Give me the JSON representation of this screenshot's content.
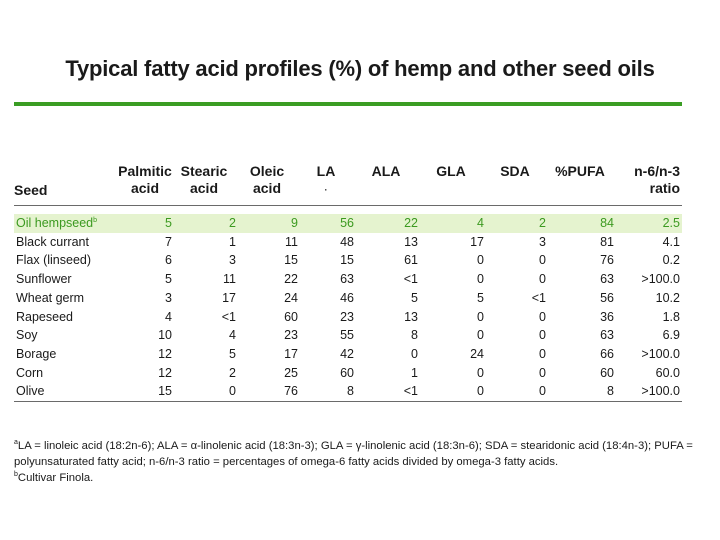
{
  "title": "Typical fatty acid profiles (%) of hemp and other seed oils",
  "colors": {
    "accent": "#3a9d23",
    "highlight_bg": "#e5f3cf",
    "highlight_text": "#3c9a20"
  },
  "table": {
    "headers": {
      "seed": "Seed",
      "palmitic": [
        "Palmitic",
        "acid"
      ],
      "stearic": [
        "Stearic",
        "acid"
      ],
      "oleic": [
        "Oleic",
        "acid"
      ],
      "la": [
        "LA",
        "·"
      ],
      "ala": "ALA",
      "gla": "GLA",
      "sda": "SDA",
      "pufa": "%PUFA",
      "ratio": [
        "n-6/n-3",
        "ratio"
      ]
    },
    "rows": [
      {
        "seed": "Oil hempseed",
        "sup": "b",
        "values": [
          "5",
          "2",
          "9",
          "56",
          "22",
          "4",
          "2",
          "84",
          "2.5"
        ]
      },
      {
        "seed": "Black currant",
        "values": [
          "7",
          "1",
          "11",
          "48",
          "13",
          "17",
          "3",
          "81",
          "4.1"
        ]
      },
      {
        "seed": "Flax (linseed)",
        "values": [
          "6",
          "3",
          "15",
          "15",
          "61",
          "0",
          "0",
          "76",
          "0.2"
        ]
      },
      {
        "seed": "Sunflower",
        "values": [
          "5",
          "11",
          "22",
          "63",
          "<1",
          "0",
          "0",
          "63",
          ">100.0"
        ]
      },
      {
        "seed": "Wheat germ",
        "values": [
          "3",
          "17",
          "24",
          "46",
          "5",
          "5",
          "<1",
          "56",
          "10.2"
        ]
      },
      {
        "seed": "Rapeseed",
        "values": [
          "4",
          "<1",
          "60",
          "23",
          "13",
          "0",
          "0",
          "36",
          "1.8"
        ]
      },
      {
        "seed": "Soy",
        "values": [
          "10",
          "4",
          "23",
          "55",
          "8",
          "0",
          "0",
          "63",
          "6.9"
        ]
      },
      {
        "seed": "Borage",
        "values": [
          "12",
          "5",
          "17",
          "42",
          "0",
          "24",
          "0",
          "66",
          ">100.0"
        ]
      },
      {
        "seed": "Corn",
        "values": [
          "12",
          "2",
          "25",
          "60",
          "1",
          "0",
          "0",
          "60",
          "60.0"
        ]
      },
      {
        "seed": "Olive",
        "values": [
          "15",
          "0",
          "76",
          "8",
          "<1",
          "0",
          "0",
          "8",
          ">100.0"
        ]
      }
    ]
  },
  "footnotes": {
    "a_mark": "a",
    "a_line1": "LA = linoleic acid (18:2n-6); ALA = α-linolenic acid (18:3n-3); GLA = γ-linolenic acid (18:3n-6); SDA = stearidonic acid (18:4n-3); PUFA =",
    "a_line2": "polyunsaturated fatty acid; n-6/n-3 ratio = percentages of omega-6 fatty acids divided by omega-3 fatty acids.",
    "b_mark": "b",
    "b_text": "Cultivar Finola."
  }
}
